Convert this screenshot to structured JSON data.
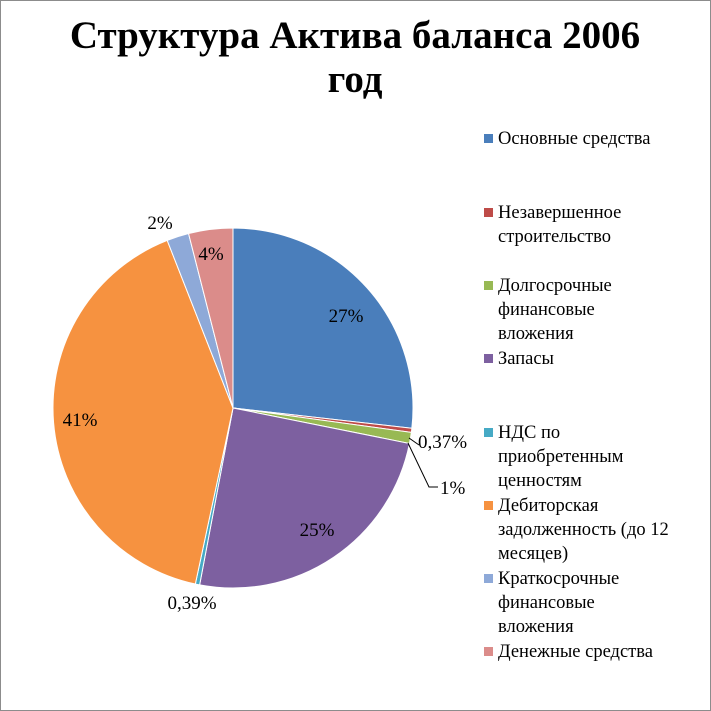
{
  "chart_data": {
    "type": "pie",
    "title": "Структура Актива баланса 2006 год",
    "title_lines": [
      "Структура Актива баланса 2006",
      "год"
    ],
    "legend_position": "right",
    "slices": [
      {
        "name": "Основные средства",
        "name_lines": [
          "Основные средства"
        ],
        "value": 27,
        "label": "27%",
        "color": "#4a7ebb"
      },
      {
        "name": "Незавершенное строительство",
        "name_lines": [
          "Незавершенное",
          "строительство"
        ],
        "value": 0.37,
        "label": "0,37%",
        "color": "#be4b48"
      },
      {
        "name": "Долгосрочные финансовые вложения",
        "name_lines": [
          "Долгосрочные",
          "финансовые",
          "вложения"
        ],
        "value": 1,
        "label": "1%",
        "color": "#98b954"
      },
      {
        "name": "Запасы",
        "name_lines": [
          "Запасы"
        ],
        "value": 25,
        "label": "25%",
        "color": "#7d60a0"
      },
      {
        "name": "НДС по приобретенным ценностям",
        "name_lines": [
          "НДС по",
          "приобретенным",
          "ценностям"
        ],
        "value": 0.39,
        "label": "0,39%",
        "color": "#46aac5"
      },
      {
        "name": "Дебиторская задолженность (до 12 месяцев)",
        "name_lines": [
          "Дебиторская",
          "задолженность (до 12",
          "месяцев)"
        ],
        "value": 41,
        "label": "41%",
        "color": "#f69240"
      },
      {
        "name": "Краткосрочные финансовые вложения",
        "name_lines": [
          "Краткосрочные",
          "финансовые",
          "вложения"
        ],
        "value": 2,
        "label": "2%",
        "color": "#8ea9d8"
      },
      {
        "name": "Денежные средства",
        "name_lines": [
          "Денежные средства"
        ],
        "value": 4,
        "label": "4%",
        "color": "#db8c8a"
      }
    ]
  }
}
